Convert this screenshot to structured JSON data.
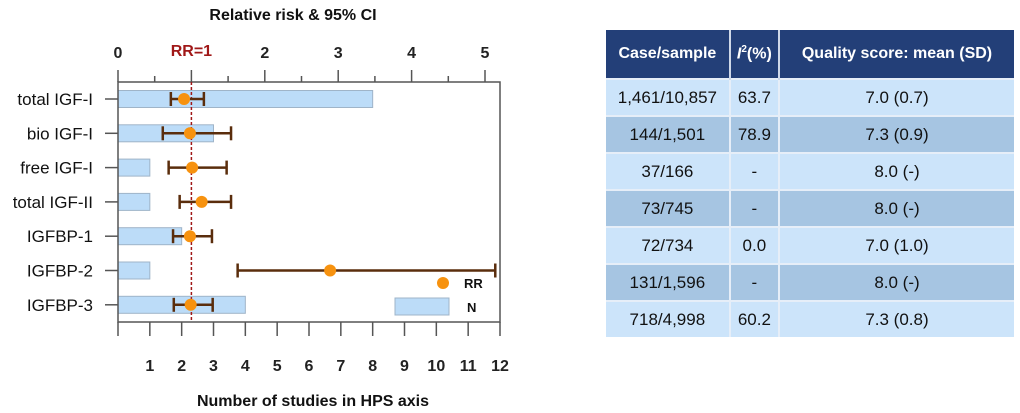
{
  "chart_data": {
    "type": "forest+bar",
    "title": "Relative risk & 95% CI",
    "xlabel": "Number of studies in HPS axis",
    "top_axis": {
      "label": "Relative risk & 95% CI",
      "range": [
        0,
        5.2
      ],
      "ticks": [
        0,
        1,
        2,
        3,
        4,
        5
      ],
      "tick_labels": [
        "0",
        "",
        "2",
        "3",
        "4",
        "5"
      ]
    },
    "bottom_axis": {
      "label": "Number of studies in HPS axis",
      "range": [
        0,
        12
      ],
      "ticks": [
        1,
        2,
        3,
        4,
        5,
        6,
        7,
        8,
        9,
        10,
        11,
        12
      ],
      "tick_labels": [
        "1",
        "2",
        "3",
        "4",
        "5",
        "6",
        "7",
        "8",
        "9",
        "10",
        "11",
        "12"
      ]
    },
    "reference_line": {
      "value": 1,
      "label": "RR=1",
      "color": "#a01818"
    },
    "categories": [
      "total IGF-I",
      "bio IGF-I",
      "free IGF-I",
      "total IGF-II",
      "IGFBP-1",
      "IGFBP-2",
      "IGFBP-3"
    ],
    "series": [
      {
        "name": "N",
        "type": "bar",
        "color": "#bcdcf8",
        "values": [
          8,
          3,
          1,
          1,
          2,
          1,
          4
        ]
      },
      {
        "name": "RR",
        "type": "point",
        "color": "#f7920f",
        "values": [
          0.9,
          0.98,
          1.01,
          1.14,
          0.98,
          2.89,
          0.99
        ],
        "ci_low": [
          0.72,
          0.61,
          0.69,
          0.84,
          0.75,
          1.63,
          0.76
        ],
        "ci_high": [
          1.17,
          1.54,
          1.48,
          1.54,
          1.28,
          5.14,
          1.29
        ]
      }
    ],
    "legend": {
      "placement": "bottom-right",
      "entries": [
        "RR",
        "N"
      ]
    },
    "colors": {
      "ci": "#5a2d0c"
    }
  },
  "table": {
    "headers": [
      "Case/sample",
      "I",
      "2",
      "(%)",
      "Quality score: mean (SD)"
    ],
    "rows": [
      [
        "1,461/10,857",
        "63.7",
        "7.0 (0.7)"
      ],
      [
        "144/1,501",
        "78.9",
        "7.3 (0.9)"
      ],
      [
        "37/166",
        "-",
        "8.0 (-)"
      ],
      [
        "73/745",
        "-",
        "8.0 (-)"
      ],
      [
        "72/734",
        "0.0",
        "7.0 (1.0)"
      ],
      [
        "131/1,596",
        "-",
        "8.0 (-)"
      ],
      [
        "718/4,998",
        "60.2",
        "7.3 (0.8)"
      ]
    ]
  }
}
